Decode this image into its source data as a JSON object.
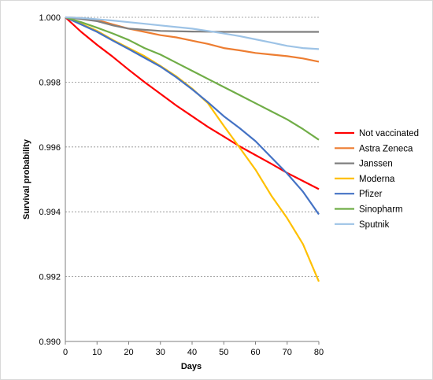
{
  "chart_data": {
    "type": "line",
    "title": "",
    "xlabel": "Days",
    "ylabel": "Survival probability",
    "xlim": [
      0,
      80
    ],
    "ylim": [
      0.99,
      1.0
    ],
    "x_ticks": [
      "0",
      "10",
      "20",
      "30",
      "40",
      "50",
      "60",
      "70",
      "80"
    ],
    "y_ticks": [
      "0.990",
      "0.992",
      "0.994",
      "0.996",
      "0.998",
      "1.000"
    ],
    "grid": "horizontal dashed",
    "legend_position": "right",
    "series": [
      {
        "name": "Not vaccinated",
        "color": "#ff0000",
        "x": [
          0,
          5,
          10,
          15,
          20,
          25,
          30,
          35,
          40,
          45,
          50,
          55,
          60,
          65,
          70,
          75,
          80
        ],
        "y": [
          1.0,
          0.99955,
          0.99915,
          0.99878,
          0.99838,
          0.998,
          0.99764,
          0.99728,
          0.99695,
          0.99662,
          0.99632,
          0.99602,
          0.99575,
          0.99548,
          0.9952,
          0.99495,
          0.9947
        ]
      },
      {
        "name": "Astra Zeneca",
        "color": "#ed7d31",
        "x": [
          0,
          5,
          10,
          15,
          20,
          25,
          30,
          35,
          40,
          45,
          50,
          55,
          60,
          65,
          70,
          75,
          80
        ],
        "y": [
          1.0,
          0.99998,
          0.99992,
          0.99978,
          0.99965,
          0.99955,
          0.99945,
          0.99938,
          0.99928,
          0.99918,
          0.99905,
          0.99898,
          0.9989,
          0.99885,
          0.9988,
          0.99873,
          0.99863
        ]
      },
      {
        "name": "Janssen",
        "color": "#7f7f7f",
        "x": [
          0,
          5,
          10,
          15,
          20,
          30,
          40,
          50,
          60,
          70,
          80
        ],
        "y": [
          1.0,
          0.99995,
          0.99988,
          0.99975,
          0.99965,
          0.99958,
          0.99956,
          0.99955,
          0.99955,
          0.99955,
          0.99955
        ]
      },
      {
        "name": "Moderna",
        "color": "#ffc000",
        "x": [
          0,
          5,
          10,
          15,
          20,
          25,
          30,
          35,
          40,
          45,
          50,
          55,
          60,
          65,
          70,
          75,
          80
        ],
        "y": [
          1.0,
          0.9998,
          0.99958,
          0.9993,
          0.99905,
          0.9988,
          0.9985,
          0.99818,
          0.9978,
          0.99735,
          0.99665,
          0.99598,
          0.9953,
          0.9945,
          0.9938,
          0.993,
          0.99185
        ]
      },
      {
        "name": "Pfizer",
        "color": "#4472c4",
        "x": [
          0,
          5,
          10,
          15,
          20,
          25,
          30,
          35,
          40,
          45,
          50,
          55,
          60,
          65,
          70,
          75,
          80
        ],
        "y": [
          1.0,
          0.99978,
          0.99955,
          0.99928,
          0.99902,
          0.99875,
          0.99848,
          0.99815,
          0.99778,
          0.99738,
          0.99695,
          0.99658,
          0.99618,
          0.99568,
          0.99518,
          0.99462,
          0.99392
        ]
      },
      {
        "name": "Sinopharm",
        "color": "#70ad47",
        "x": [
          0,
          5,
          10,
          15,
          20,
          25,
          30,
          35,
          40,
          45,
          50,
          55,
          60,
          65,
          70,
          75,
          80
        ],
        "y": [
          1.0,
          0.99985,
          0.99968,
          0.9995,
          0.9993,
          0.99905,
          0.99885,
          0.9986,
          0.99835,
          0.9981,
          0.99785,
          0.9976,
          0.99735,
          0.9971,
          0.99685,
          0.99655,
          0.99622
        ]
      },
      {
        "name": "Sputnik",
        "color": "#9dc3e6",
        "x": [
          0,
          5,
          10,
          15,
          20,
          25,
          30,
          35,
          40,
          45,
          50,
          55,
          60,
          65,
          70,
          75,
          80
        ],
        "y": [
          1.0,
          0.99998,
          0.99994,
          0.9999,
          0.99985,
          0.9998,
          0.99975,
          0.9997,
          0.99965,
          0.99958,
          0.9995,
          0.99942,
          0.99932,
          0.99922,
          0.99912,
          0.99905,
          0.99902
        ]
      }
    ]
  }
}
